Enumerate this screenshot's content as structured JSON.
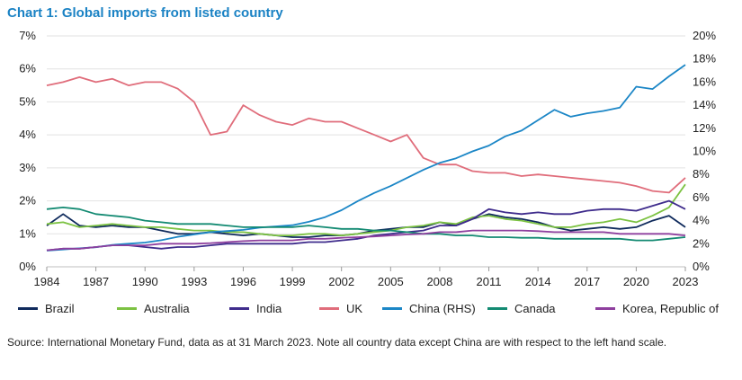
{
  "chart_data": {
    "type": "line",
    "title": "Chart 1: Global imports from listed country",
    "x_ticks": [
      "1984",
      "1987",
      "1990",
      "1993",
      "1996",
      "1999",
      "2002",
      "2005",
      "2008",
      "2011",
      "2014",
      "2017",
      "2020",
      "2023"
    ],
    "y_left_ticks": [
      "0%",
      "1%",
      "2%",
      "3%",
      "4%",
      "5%",
      "6%",
      "7%"
    ],
    "y_right_ticks": [
      "0%",
      "2%",
      "4%",
      "6%",
      "8%",
      "10%",
      "12%",
      "14%",
      "16%",
      "18%",
      "20%"
    ],
    "ylim_left": [
      0,
      7
    ],
    "ylim_right": [
      0,
      20
    ],
    "xlim": [
      1984,
      2023
    ],
    "grid": "horizontal",
    "legend_position": "bottom",
    "series": [
      {
        "name": "Brazil",
        "color": "#0f2a5c",
        "axis": "left",
        "points": [
          [
            1984,
            1.25
          ],
          [
            1985,
            1.6
          ],
          [
            1986,
            1.25
          ],
          [
            1987,
            1.2
          ],
          [
            1988,
            1.25
          ],
          [
            1989,
            1.2
          ],
          [
            1990,
            1.2
          ],
          [
            1991,
            1.1
          ],
          [
            1992,
            1.0
          ],
          [
            1993,
            1.0
          ],
          [
            1994,
            1.05
          ],
          [
            1995,
            1.0
          ],
          [
            1996,
            0.95
          ],
          [
            1997,
            1.0
          ],
          [
            1998,
            0.95
          ],
          [
            1999,
            0.9
          ],
          [
            2000,
            0.9
          ],
          [
            2001,
            0.95
          ],
          [
            2002,
            0.95
          ],
          [
            2003,
            1.0
          ],
          [
            2004,
            1.1
          ],
          [
            2005,
            1.15
          ],
          [
            2006,
            1.2
          ],
          [
            2007,
            1.2
          ],
          [
            2008,
            1.35
          ],
          [
            2009,
            1.25
          ],
          [
            2010,
            1.45
          ],
          [
            2011,
            1.6
          ],
          [
            2012,
            1.5
          ],
          [
            2013,
            1.45
          ],
          [
            2014,
            1.35
          ],
          [
            2015,
            1.2
          ],
          [
            2016,
            1.1
          ],
          [
            2017,
            1.15
          ],
          [
            2018,
            1.2
          ],
          [
            2019,
            1.15
          ],
          [
            2020,
            1.2
          ],
          [
            2021,
            1.4
          ],
          [
            2022,
            1.55
          ],
          [
            2023,
            1.2
          ]
        ]
      },
      {
        "name": "Australia",
        "color": "#7cc242",
        "axis": "left",
        "points": [
          [
            1984,
            1.3
          ],
          [
            1985,
            1.35
          ],
          [
            1986,
            1.2
          ],
          [
            1987,
            1.25
          ],
          [
            1988,
            1.3
          ],
          [
            1989,
            1.25
          ],
          [
            1990,
            1.2
          ],
          [
            1991,
            1.2
          ],
          [
            1992,
            1.15
          ],
          [
            1993,
            1.1
          ],
          [
            1994,
            1.1
          ],
          [
            1995,
            1.05
          ],
          [
            1996,
            1.05
          ],
          [
            1997,
            1.0
          ],
          [
            1998,
            0.95
          ],
          [
            1999,
            0.95
          ],
          [
            2000,
            1.0
          ],
          [
            2001,
            1.0
          ],
          [
            2002,
            0.95
          ],
          [
            2003,
            1.0
          ],
          [
            2004,
            1.05
          ],
          [
            2005,
            1.1
          ],
          [
            2006,
            1.2
          ],
          [
            2007,
            1.25
          ],
          [
            2008,
            1.35
          ],
          [
            2009,
            1.3
          ],
          [
            2010,
            1.5
          ],
          [
            2011,
            1.55
          ],
          [
            2012,
            1.45
          ],
          [
            2013,
            1.4
          ],
          [
            2014,
            1.3
          ],
          [
            2015,
            1.2
          ],
          [
            2016,
            1.2
          ],
          [
            2017,
            1.3
          ],
          [
            2018,
            1.35
          ],
          [
            2019,
            1.45
          ],
          [
            2020,
            1.35
          ],
          [
            2021,
            1.55
          ],
          [
            2022,
            1.8
          ],
          [
            2023,
            2.5
          ]
        ]
      },
      {
        "name": "India",
        "color": "#3f2c8c",
        "axis": "left",
        "points": [
          [
            1984,
            0.5
          ],
          [
            1985,
            0.55
          ],
          [
            1986,
            0.55
          ],
          [
            1987,
            0.6
          ],
          [
            1988,
            0.65
          ],
          [
            1989,
            0.65
          ],
          [
            1990,
            0.6
          ],
          [
            1991,
            0.55
          ],
          [
            1992,
            0.6
          ],
          [
            1993,
            0.6
          ],
          [
            1994,
            0.65
          ],
          [
            1995,
            0.7
          ],
          [
            1996,
            0.7
          ],
          [
            1997,
            0.7
          ],
          [
            1998,
            0.7
          ],
          [
            1999,
            0.7
          ],
          [
            2000,
            0.75
          ],
          [
            2001,
            0.75
          ],
          [
            2002,
            0.8
          ],
          [
            2003,
            0.85
          ],
          [
            2004,
            0.95
          ],
          [
            2005,
            1.0
          ],
          [
            2006,
            1.05
          ],
          [
            2007,
            1.1
          ],
          [
            2008,
            1.25
          ],
          [
            2009,
            1.25
          ],
          [
            2010,
            1.45
          ],
          [
            2011,
            1.75
          ],
          [
            2012,
            1.65
          ],
          [
            2013,
            1.6
          ],
          [
            2014,
            1.65
          ],
          [
            2015,
            1.6
          ],
          [
            2016,
            1.6
          ],
          [
            2017,
            1.7
          ],
          [
            2018,
            1.75
          ],
          [
            2019,
            1.75
          ],
          [
            2020,
            1.7
          ],
          [
            2021,
            1.85
          ],
          [
            2022,
            2.0
          ],
          [
            2023,
            1.75
          ]
        ]
      },
      {
        "name": "UK",
        "color": "#e06d7b",
        "axis": "left",
        "points": [
          [
            1984,
            5.5
          ],
          [
            1985,
            5.6
          ],
          [
            1986,
            5.75
          ],
          [
            1987,
            5.6
          ],
          [
            1988,
            5.7
          ],
          [
            1989,
            5.5
          ],
          [
            1990,
            5.6
          ],
          [
            1991,
            5.6
          ],
          [
            1992,
            5.4
          ],
          [
            1993,
            5.0
          ],
          [
            1994,
            4.0
          ],
          [
            1995,
            4.1
          ],
          [
            1996,
            4.9
          ],
          [
            1997,
            4.6
          ],
          [
            1998,
            4.4
          ],
          [
            1999,
            4.3
          ],
          [
            2000,
            4.5
          ],
          [
            2001,
            4.4
          ],
          [
            2002,
            4.4
          ],
          [
            2003,
            4.2
          ],
          [
            2004,
            4.0
          ],
          [
            2005,
            3.8
          ],
          [
            2006,
            4.0
          ],
          [
            2007,
            3.3
          ],
          [
            2008,
            3.1
          ],
          [
            2009,
            3.1
          ],
          [
            2010,
            2.9
          ],
          [
            2011,
            2.85
          ],
          [
            2012,
            2.85
          ],
          [
            2013,
            2.75
          ],
          [
            2014,
            2.8
          ],
          [
            2015,
            2.75
          ],
          [
            2016,
            2.7
          ],
          [
            2017,
            2.65
          ],
          [
            2018,
            2.6
          ],
          [
            2019,
            2.55
          ],
          [
            2020,
            2.45
          ],
          [
            2021,
            2.3
          ],
          [
            2022,
            2.25
          ],
          [
            2023,
            2.7
          ]
        ]
      },
      {
        "name": "China (RHS)",
        "color": "#1b86c6",
        "axis": "right",
        "points": [
          [
            1984,
            1.4
          ],
          [
            1985,
            1.5
          ],
          [
            1986,
            1.6
          ],
          [
            1987,
            1.7
          ],
          [
            1988,
            1.9
          ],
          [
            1989,
            2.0
          ],
          [
            1990,
            2.1
          ],
          [
            1991,
            2.3
          ],
          [
            1992,
            2.6
          ],
          [
            1993,
            2.8
          ],
          [
            1994,
            3.0
          ],
          [
            1995,
            3.1
          ],
          [
            1996,
            3.2
          ],
          [
            1997,
            3.4
          ],
          [
            1998,
            3.5
          ],
          [
            1999,
            3.6
          ],
          [
            2000,
            3.9
          ],
          [
            2001,
            4.3
          ],
          [
            2002,
            4.9
          ],
          [
            2003,
            5.7
          ],
          [
            2004,
            6.4
          ],
          [
            2005,
            7.0
          ],
          [
            2006,
            7.7
          ],
          [
            2007,
            8.4
          ],
          [
            2008,
            9.0
          ],
          [
            2009,
            9.4
          ],
          [
            2010,
            10.0
          ],
          [
            2011,
            10.5
          ],
          [
            2012,
            11.3
          ],
          [
            2013,
            11.8
          ],
          [
            2014,
            12.7
          ],
          [
            2015,
            13.6
          ],
          [
            2016,
            13.0
          ],
          [
            2017,
            13.3
          ],
          [
            2018,
            13.5
          ],
          [
            2019,
            13.8
          ],
          [
            2020,
            15.6
          ],
          [
            2021,
            15.4
          ],
          [
            2022,
            16.5
          ],
          [
            2023,
            17.5
          ]
        ]
      },
      {
        "name": "Canada",
        "color": "#138a72",
        "axis": "left",
        "points": [
          [
            1984,
            1.75
          ],
          [
            1985,
            1.8
          ],
          [
            1986,
            1.75
          ],
          [
            1987,
            1.6
          ],
          [
            1988,
            1.55
          ],
          [
            1989,
            1.5
          ],
          [
            1990,
            1.4
          ],
          [
            1991,
            1.35
          ],
          [
            1992,
            1.3
          ],
          [
            1993,
            1.3
          ],
          [
            1994,
            1.3
          ],
          [
            1995,
            1.25
          ],
          [
            1996,
            1.2
          ],
          [
            1997,
            1.2
          ],
          [
            1998,
            1.2
          ],
          [
            1999,
            1.2
          ],
          [
            2000,
            1.25
          ],
          [
            2001,
            1.2
          ],
          [
            2002,
            1.15
          ],
          [
            2003,
            1.15
          ],
          [
            2004,
            1.1
          ],
          [
            2005,
            1.1
          ],
          [
            2006,
            1.05
          ],
          [
            2007,
            1.0
          ],
          [
            2008,
            1.0
          ],
          [
            2009,
            0.95
          ],
          [
            2010,
            0.95
          ],
          [
            2011,
            0.9
          ],
          [
            2012,
            0.9
          ],
          [
            2013,
            0.88
          ],
          [
            2014,
            0.88
          ],
          [
            2015,
            0.85
          ],
          [
            2016,
            0.85
          ],
          [
            2017,
            0.85
          ],
          [
            2018,
            0.85
          ],
          [
            2019,
            0.85
          ],
          [
            2020,
            0.8
          ],
          [
            2021,
            0.8
          ],
          [
            2022,
            0.85
          ],
          [
            2023,
            0.9
          ]
        ]
      },
      {
        "name": "Korea, Republic of",
        "color": "#8e3f9e",
        "axis": "left",
        "points": [
          [
            1984,
            0.5
          ],
          [
            1985,
            0.55
          ],
          [
            1986,
            0.55
          ],
          [
            1987,
            0.6
          ],
          [
            1988,
            0.65
          ],
          [
            1989,
            0.65
          ],
          [
            1990,
            0.65
          ],
          [
            1991,
            0.7
          ],
          [
            1992,
            0.7
          ],
          [
            1993,
            0.7
          ],
          [
            1994,
            0.72
          ],
          [
            1995,
            0.75
          ],
          [
            1996,
            0.78
          ],
          [
            1997,
            0.8
          ],
          [
            1998,
            0.8
          ],
          [
            1999,
            0.8
          ],
          [
            2000,
            0.85
          ],
          [
            2001,
            0.85
          ],
          [
            2002,
            0.88
          ],
          [
            2003,
            0.9
          ],
          [
            2004,
            0.92
          ],
          [
            2005,
            0.95
          ],
          [
            2006,
            0.98
          ],
          [
            2007,
            1.0
          ],
          [
            2008,
            1.05
          ],
          [
            2009,
            1.05
          ],
          [
            2010,
            1.1
          ],
          [
            2011,
            1.1
          ],
          [
            2012,
            1.1
          ],
          [
            2013,
            1.1
          ],
          [
            2014,
            1.08
          ],
          [
            2015,
            1.05
          ],
          [
            2016,
            1.05
          ],
          [
            2017,
            1.05
          ],
          [
            2018,
            1.05
          ],
          [
            2019,
            1.0
          ],
          [
            2020,
            1.0
          ],
          [
            2021,
            1.0
          ],
          [
            2022,
            1.0
          ],
          [
            2023,
            0.95
          ]
        ]
      }
    ]
  },
  "source_note": "Source: International Monetary Fund, data as at 31 March 2023. Note all country data except China are with respect to the left hand scale."
}
